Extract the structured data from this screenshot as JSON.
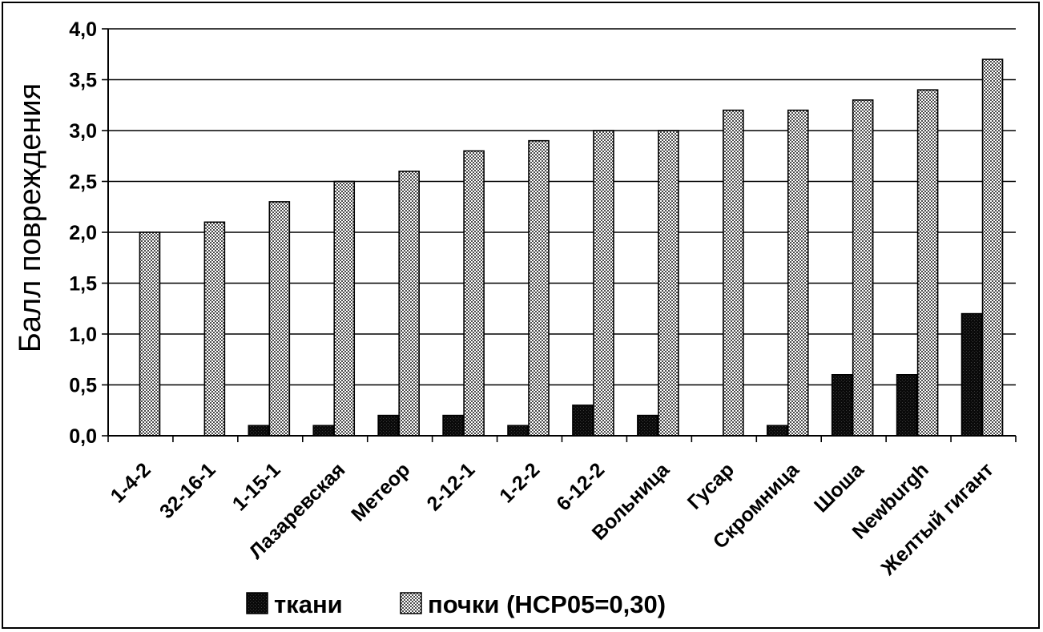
{
  "chart_data": {
    "type": "bar",
    "title": "",
    "xlabel": "",
    "ylabel": "Балл повреждения",
    "ylim": [
      0,
      4
    ],
    "y_ticks": [
      "0,0",
      "0,5",
      "1,0",
      "1,5",
      "2,0",
      "2,5",
      "3,0",
      "3,5",
      "4,0"
    ],
    "y_tick_values": [
      0,
      0.5,
      1,
      1.5,
      2,
      2.5,
      3,
      3.5,
      4
    ],
    "grid": true,
    "legend_position": "bottom",
    "categories": [
      "1-4-2",
      "32-16-1",
      "1-15-1",
      "Лазаревская",
      "Метеор",
      "2-12-1",
      "1-2-2",
      "6-12-2",
      "Вольница",
      "Гусар",
      "Скромница",
      "Шоша",
      "Newburgh",
      "Желтый гигант"
    ],
    "series": [
      {
        "name": "ткани",
        "pattern": "dark",
        "values": [
          0,
          0,
          0.1,
          0.1,
          0.2,
          0.2,
          0.1,
          0.3,
          0.2,
          0,
          0.1,
          0.6,
          0.6,
          1.2
        ]
      },
      {
        "name": "почки (НСР05=0,30)",
        "pattern": "checker",
        "values": [
          2.0,
          2.1,
          2.3,
          2.5,
          2.6,
          2.8,
          2.9,
          3.0,
          3.0,
          3.2,
          3.2,
          3.3,
          3.4,
          3.7
        ]
      }
    ],
    "colors": {
      "dark": "#111111",
      "checker_light": "#ffffff",
      "checker_dark": "#555555",
      "grid": "#000000"
    }
  }
}
